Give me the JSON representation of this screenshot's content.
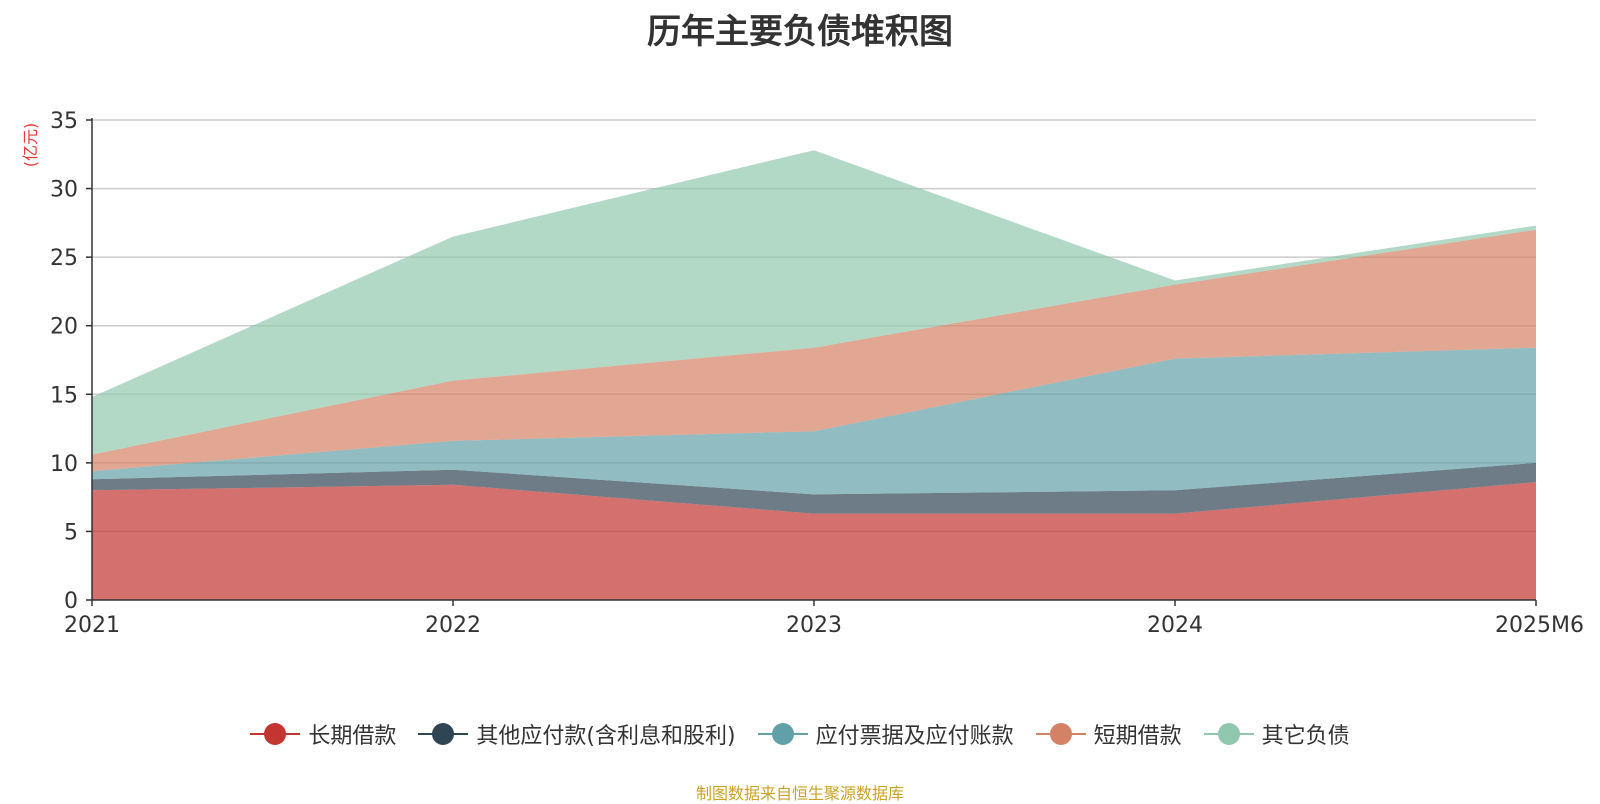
{
  "chart_data": {
    "type": "area",
    "stacked": true,
    "title": "历年主要负债堆积图",
    "ylabel": "(亿元)",
    "xlabel": "",
    "ylim": [
      0,
      35
    ],
    "yticks": [
      0,
      5,
      10,
      15,
      20,
      25,
      30,
      35
    ],
    "categories": [
      "2021",
      "2022",
      "2023",
      "2024",
      "2025M6"
    ],
    "grid": true,
    "legend_position": "bottom",
    "series": [
      {
        "name": "长期借款",
        "color": "#c23531",
        "values": [
          8.0,
          8.4,
          6.3,
          6.3,
          8.6
        ]
      },
      {
        "name": "其他应付款(含利息和股利)",
        "color": "#2f4554",
        "values": [
          0.8,
          1.1,
          1.4,
          1.7,
          1.4
        ]
      },
      {
        "name": "应付票据及应付账款",
        "color": "#61a0a8",
        "values": [
          0.6,
          2.1,
          4.6,
          9.6,
          8.4
        ]
      },
      {
        "name": "短期借款",
        "color": "#d48265",
        "values": [
          1.2,
          4.4,
          6.1,
          5.4,
          8.6
        ]
      },
      {
        "name": "其它负债",
        "color": "#91c7ae",
        "values": [
          4.2,
          10.5,
          14.4,
          0.3,
          0.3
        ]
      }
    ]
  },
  "footer": {
    "source": "制图数据来自恒生聚源数据库"
  }
}
